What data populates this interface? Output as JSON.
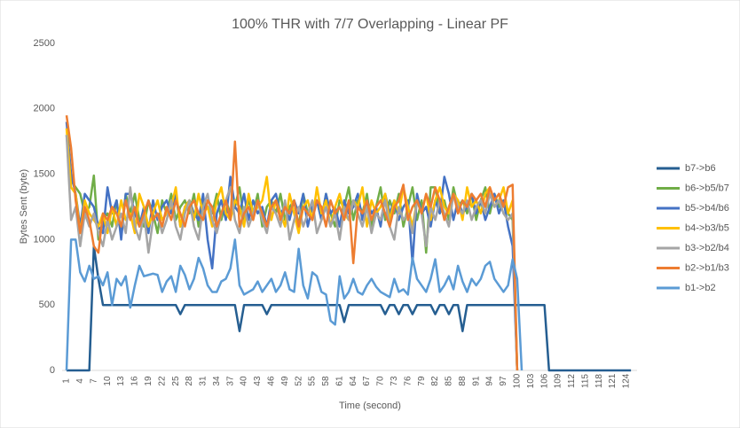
{
  "chart_data": {
    "type": "line",
    "title": "100% THR with 7/7 Overlapping - Linear PF",
    "x_label": "Time (second)",
    "y_label": "Bytes Sent (byte)",
    "ylim": [
      0,
      2500
    ],
    "yticks": [
      0,
      500,
      1000,
      1500,
      2000,
      2500
    ],
    "grid": false,
    "legend": "right",
    "categories": [
      1,
      null,
      null,
      4,
      null,
      null,
      7,
      null,
      null,
      10,
      null,
      null,
      13,
      null,
      null,
      16,
      null,
      null,
      19,
      null,
      null,
      22,
      null,
      null,
      25,
      null,
      null,
      28,
      null,
      null,
      31,
      null,
      null,
      34,
      null,
      null,
      37,
      null,
      null,
      40,
      null,
      null,
      43,
      null,
      null,
      46,
      null,
      null,
      49,
      null,
      null,
      52,
      null,
      null,
      55,
      null,
      null,
      58,
      null,
      null,
      61,
      null,
      null,
      64,
      null,
      null,
      67,
      null,
      null,
      70,
      null,
      null,
      73,
      null,
      null,
      76,
      null,
      null,
      79,
      null,
      null,
      82,
      null,
      null,
      85,
      null,
      null,
      88,
      null,
      null,
      91,
      null,
      null,
      94,
      null,
      null,
      97,
      null,
      null,
      100,
      null,
      null,
      103,
      null,
      null,
      106,
      null,
      null,
      109,
      null,
      null,
      112,
      null,
      null,
      115,
      null,
      null,
      118,
      null,
      null,
      121,
      null,
      null,
      124,
      null
    ],
    "series": [
      {
        "name": "b7->b6",
        "color": "#255e91",
        "values": [
          0,
          0,
          0,
          0,
          0,
          0,
          950,
          700,
          500,
          500,
          500,
          500,
          500,
          500,
          500,
          500,
          500,
          500,
          500,
          500,
          500,
          500,
          500,
          500,
          500,
          430,
          500,
          500,
          500,
          500,
          500,
          500,
          500,
          500,
          500,
          500,
          500,
          500,
          300,
          500,
          500,
          500,
          500,
          500,
          430,
          500,
          500,
          500,
          500,
          500,
          500,
          500,
          500,
          500,
          500,
          500,
          500,
          500,
          500,
          500,
          500,
          370,
          500,
          500,
          500,
          500,
          500,
          500,
          500,
          500,
          430,
          500,
          500,
          430,
          500,
          500,
          430,
          500,
          500,
          500,
          500,
          430,
          500,
          500,
          430,
          500,
          500,
          300,
          500,
          500,
          500,
          500,
          500,
          500,
          500,
          500,
          500,
          500,
          500,
          500,
          500,
          500,
          500,
          500,
          500,
          500,
          0,
          0,
          0,
          0,
          0,
          0,
          0,
          0,
          0,
          0,
          0,
          0,
          0,
          0,
          0,
          0,
          0,
          0,
          0
        ]
      },
      {
        "name": "b6->b5/b7",
        "color": "#70ad47",
        "values": [
          1800,
          1450,
          1400,
          1350,
          1200,
          1250,
          1490,
          1000,
          1150,
          1200,
          1100,
          1300,
          1050,
          1350,
          1200,
          1350,
          1150,
          1100,
          1300,
          1200,
          1050,
          1300,
          1200,
          1350,
          1150,
          1250,
          1300,
          1200,
          1350,
          1100,
          1300,
          1250,
          1200,
          1350,
          1150,
          1300,
          1200,
          1250,
          1400,
          1150,
          1300,
          1200,
          1350,
          1100,
          1250,
          1300,
          1200,
          1350,
          1150,
          1250,
          1300,
          1100,
          1350,
          1200,
          1250,
          1300,
          1150,
          1350,
          1200,
          1100,
          1300,
          1250,
          1400,
          1150,
          1300,
          1200,
          1350,
          1100,
          1250,
          1400,
          1150,
          1300,
          1200,
          1350,
          1100,
          1250,
          1400,
          1150,
          1300,
          900,
          1400,
          1400,
          1200,
          1300,
          1150,
          1400,
          1250,
          1300,
          1200,
          1350,
          1150,
          1300,
          1400,
          1200,
          1350,
          1250,
          1300,
          1200,
          1150,
          0,
          null,
          null,
          null,
          null,
          null,
          null,
          null,
          null,
          null,
          null,
          null,
          null,
          null,
          null,
          null,
          null,
          null,
          null,
          null,
          null,
          null,
          null,
          null,
          null,
          null
        ]
      },
      {
        "name": "b5->b4/b6",
        "color": "#4472c4",
        "values": [
          1900,
          1500,
          1350,
          1100,
          1350,
          1300,
          1250,
          1100,
          1050,
          1400,
          1200,
          1300,
          1000,
          1350,
          1350,
          1200,
          1100,
          1250,
          1050,
          1300,
          1150,
          1250,
          1300,
          1200,
          1350,
          1100,
          1250,
          1300,
          1200,
          1150,
          1350,
          1000,
          780,
          1200,
          1300,
          1150,
          1480,
          1250,
          1200,
          1350,
          1150,
          1300,
          1200,
          1250,
          1100,
          1300,
          1350,
          1200,
          1250,
          1150,
          1300,
          1200,
          1350,
          1100,
          1250,
          1300,
          1150,
          1350,
          1200,
          1250,
          1100,
          1300,
          1200,
          1250,
          1350,
          1150,
          1300,
          1200,
          1250,
          1100,
          1350,
          1200,
          1300,
          1150,
          1250,
          1300,
          820,
          1350,
          1200,
          1250,
          1100,
          1300,
          1200,
          1480,
          1350,
          1150,
          1300,
          1200,
          1250,
          1350,
          1200,
          1300,
          1150,
          1250,
          1350,
          1200,
          1300,
          1100,
          950,
          0,
          null,
          null,
          null,
          null,
          null,
          null,
          null,
          null,
          null,
          null,
          null,
          null,
          null,
          null,
          null,
          null,
          null,
          null,
          null,
          null,
          null,
          null,
          null,
          null,
          null
        ]
      },
      {
        "name": "b4->b3/b5",
        "color": "#ffc000",
        "values": [
          1850,
          1400,
          1350,
          1050,
          1300,
          1200,
          1150,
          1100,
          1200,
          1050,
          1250,
          1100,
          1300,
          1150,
          1200,
          1050,
          1350,
          1250,
          1100,
          1200,
          1300,
          1150,
          1200,
          1250,
          1400,
          1100,
          1250,
          1300,
          1150,
          1350,
          1200,
          1250,
          1100,
          1300,
          1400,
          1200,
          1150,
          1300,
          1250,
          1100,
          1350,
          1200,
          1250,
          1300,
          1480,
          1150,
          1300,
          1200,
          1100,
          1350,
          1200,
          1050,
          1250,
          1300,
          1150,
          1400,
          1200,
          1300,
          1100,
          1250,
          1350,
          1200,
          1150,
          1300,
          1250,
          1400,
          1100,
          1300,
          1200,
          1250,
          1350,
          1150,
          1300,
          1200,
          1400,
          1250,
          1100,
          1300,
          1200,
          1350,
          1150,
          1300,
          1400,
          1250,
          1200,
          1350,
          1300,
          1150,
          1400,
          1250,
          1300,
          1200,
          1350,
          1400,
          1250,
          1300,
          1400,
          1200,
          1300,
          0,
          null,
          null,
          null,
          null,
          null,
          null,
          null,
          null,
          null,
          null,
          null,
          null,
          null,
          null,
          null,
          null,
          null,
          null,
          null,
          null,
          null,
          null,
          null,
          null,
          null
        ]
      },
      {
        "name": "b3->b2/b4",
        "color": "#a5a5a5",
        "values": [
          1800,
          1150,
          1250,
          950,
          1200,
          1100,
          1200,
          1050,
          950,
          1150,
          1000,
          1100,
          1200,
          1050,
          1400,
          1100,
          1000,
          1200,
          900,
          1150,
          1200,
          1050,
          1150,
          1300,
          1100,
          1000,
          1200,
          1300,
          1100,
          1000,
          1250,
          1350,
          1150,
          1050,
          1200,
          1300,
          1400,
          1150,
          1050,
          1250,
          1100,
          1200,
          1300,
          1150,
          1050,
          1250,
          1200,
          1100,
          1300,
          1000,
          1150,
          1250,
          1100,
          1200,
          1300,
          1050,
          1150,
          1250,
          1100,
          1200,
          1000,
          1250,
          1150,
          1300,
          1200,
          1100,
          1250,
          1050,
          1200,
          1150,
          1300,
          1100,
          1000,
          1250,
          1150,
          1200,
          1050,
          1300,
          1200,
          950,
          1250,
          1150,
          1300,
          1200,
          1100,
          1350,
          1250,
          1200,
          1300,
          1150,
          1250,
          1300,
          1200,
          1350,
          1250,
          1300,
          1200,
          1150,
          1200,
          0,
          null,
          null,
          null,
          null,
          null,
          null,
          null,
          null,
          null,
          null,
          null,
          null,
          null,
          null,
          null,
          null,
          null,
          null,
          null,
          null,
          null,
          null,
          null,
          null,
          null
        ]
      },
      {
        "name": "b2->b1/b3",
        "color": "#ed7d31",
        "values": [
          1950,
          1700,
          1300,
          1050,
          1250,
          1150,
          950,
          900,
          1200,
          1150,
          1250,
          1200,
          1100,
          1300,
          1150,
          1250,
          1100,
          1200,
          1300,
          1150,
          1200,
          1100,
          1250,
          1150,
          1300,
          1200,
          1100,
          1250,
          1300,
          1200,
          1150,
          1300,
          1250,
          1100,
          1200,
          1300,
          1150,
          1750,
          1100,
          1200,
          1250,
          1150,
          1300,
          1200,
          1100,
          1250,
          1300,
          1150,
          1250,
          1200,
          1300,
          1100,
          1250,
          1200,
          1150,
          1300,
          1250,
          1100,
          1300,
          1200,
          1250,
          1150,
          1300,
          820,
          1250,
          1200,
          1300,
          1150,
          1250,
          1300,
          1200,
          1100,
          1250,
          1300,
          1420,
          1150,
          1250,
          1300,
          1200,
          1350,
          1250,
          1400,
          1300,
          1150,
          1250,
          1350,
          1200,
          1300,
          1250,
          1350,
          1300,
          1350,
          1250,
          1400,
          1300,
          1350,
          1250,
          1400,
          1420,
          0,
          null,
          null,
          null,
          null,
          null,
          null,
          null,
          null,
          null,
          null,
          null,
          null,
          null,
          null,
          null,
          null,
          null,
          null,
          null,
          null,
          null,
          null,
          null,
          null,
          null
        ]
      },
      {
        "name": "b1->b2",
        "color": "#5b9bd5",
        "values": [
          0,
          1000,
          1000,
          750,
          680,
          800,
          700,
          720,
          650,
          750,
          500,
          700,
          650,
          720,
          480,
          650,
          800,
          720,
          730,
          740,
          730,
          600,
          680,
          720,
          600,
          800,
          730,
          620,
          700,
          860,
          780,
          650,
          600,
          600,
          680,
          700,
          780,
          1000,
          650,
          580,
          600,
          620,
          680,
          600,
          650,
          700,
          600,
          650,
          750,
          620,
          600,
          930,
          650,
          550,
          750,
          720,
          600,
          580,
          380,
          350,
          720,
          550,
          600,
          700,
          600,
          580,
          650,
          700,
          640,
          600,
          580,
          560,
          700,
          600,
          620,
          580,
          860,
          700,
          650,
          600,
          700,
          850,
          600,
          650,
          720,
          620,
          800,
          680,
          600,
          700,
          650,
          700,
          800,
          830,
          700,
          650,
          600,
          650,
          850,
          700,
          0,
          null,
          null,
          null,
          null,
          null,
          null,
          null,
          null,
          null,
          null,
          null,
          null,
          null,
          null,
          null,
          null,
          null,
          null,
          null,
          null,
          null,
          null,
          null,
          null
        ]
      }
    ]
  }
}
